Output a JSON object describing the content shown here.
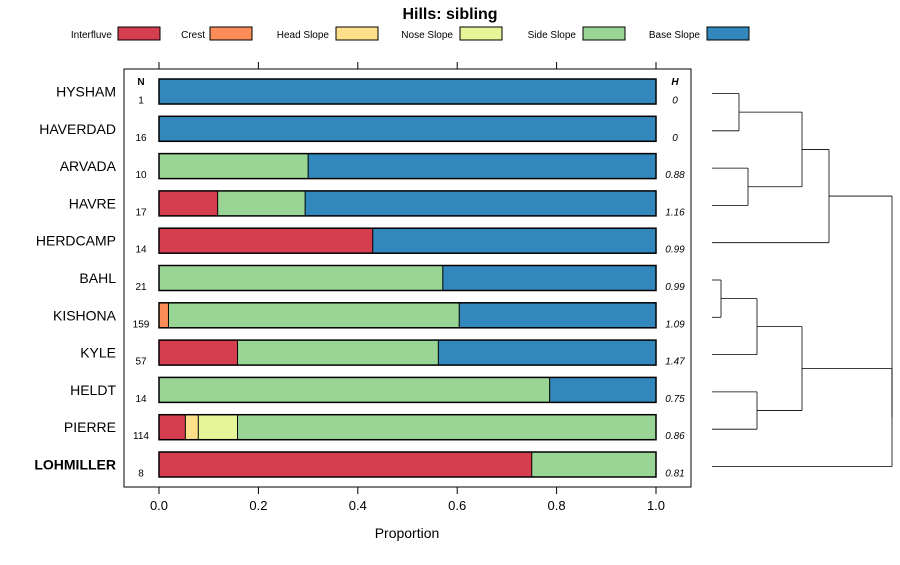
{
  "chart_data": {
    "type": "bar",
    "stacked": true,
    "orientation": "horizontal",
    "title": "Hills: sibling",
    "xlabel": "Proportion",
    "xlim": [
      0,
      1
    ],
    "xticks": [
      "0.0",
      "0.2",
      "0.4",
      "0.6",
      "0.8",
      "1.0"
    ],
    "n_header": "N",
    "h_header": "H",
    "legend": [
      {
        "name": "Interfluve",
        "color": "#d53e4f"
      },
      {
        "name": "Crest",
        "color": "#fc8d59"
      },
      {
        "name": "Head Slope",
        "color": "#fee08b"
      },
      {
        "name": "Nose Slope",
        "color": "#e6f598"
      },
      {
        "name": "Side Slope",
        "color": "#99d594"
      },
      {
        "name": "Base Slope",
        "color": "#3288bd"
      }
    ],
    "rows": [
      {
        "name": "HYSHAM",
        "n": "1",
        "h": "0",
        "bold": false,
        "values": [
          0,
          0,
          0,
          0,
          0,
          1.0
        ]
      },
      {
        "name": "HAVERDAD",
        "n": "16",
        "h": "0",
        "bold": false,
        "values": [
          0,
          0,
          0,
          0,
          0,
          1.0
        ]
      },
      {
        "name": "ARVADA",
        "n": "10",
        "h": "0.88",
        "bold": false,
        "values": [
          0,
          0,
          0,
          0,
          0.3,
          0.7
        ]
      },
      {
        "name": "HAVRE",
        "n": "17",
        "h": "1.16",
        "bold": false,
        "values": [
          0.118,
          0,
          0,
          0,
          0.176,
          0.706
        ]
      },
      {
        "name": "HERDCAMP",
        "n": "14",
        "h": "0.99",
        "bold": false,
        "values": [
          0.43,
          0,
          0,
          0,
          0,
          0.57
        ]
      },
      {
        "name": "BAHL",
        "n": "21",
        "h": "0.99",
        "bold": false,
        "values": [
          0,
          0,
          0,
          0,
          0.571,
          0.429
        ]
      },
      {
        "name": "KISHONA",
        "n": "159",
        "h": "1.09",
        "bold": false,
        "values": [
          0,
          0.019,
          0,
          0,
          0.585,
          0.396
        ]
      },
      {
        "name": "KYLE",
        "n": "57",
        "h": "1.47",
        "bold": false,
        "values": [
          0.158,
          0,
          0,
          0,
          0.404,
          0.438
        ]
      },
      {
        "name": "HELDT",
        "n": "14",
        "h": "0.75",
        "bold": false,
        "values": [
          0,
          0,
          0,
          0,
          0.786,
          0.214
        ]
      },
      {
        "name": "PIERRE",
        "n": "114",
        "h": "0.86",
        "bold": false,
        "values": [
          0.053,
          0,
          0.026,
          0.079,
          0.842,
          0
        ]
      },
      {
        "name": "LOHMILLER",
        "n": "8",
        "h": "0.81",
        "bold": true,
        "values": [
          0.75,
          0,
          0,
          0,
          0.25,
          0
        ]
      }
    ],
    "dendrogram_merges": [
      [
        0,
        1,
        0.15
      ],
      [
        2,
        3,
        0.2
      ],
      [
        11,
        12,
        0.5
      ],
      [
        13,
        4,
        0.65
      ],
      [
        5,
        6,
        0.05
      ],
      [
        15,
        7,
        0.25
      ],
      [
        8,
        9,
        0.25
      ],
      [
        16,
        17,
        0.5
      ],
      [
        18,
        10,
        1.0
      ],
      [
        14,
        19,
        1.0
      ]
    ]
  }
}
